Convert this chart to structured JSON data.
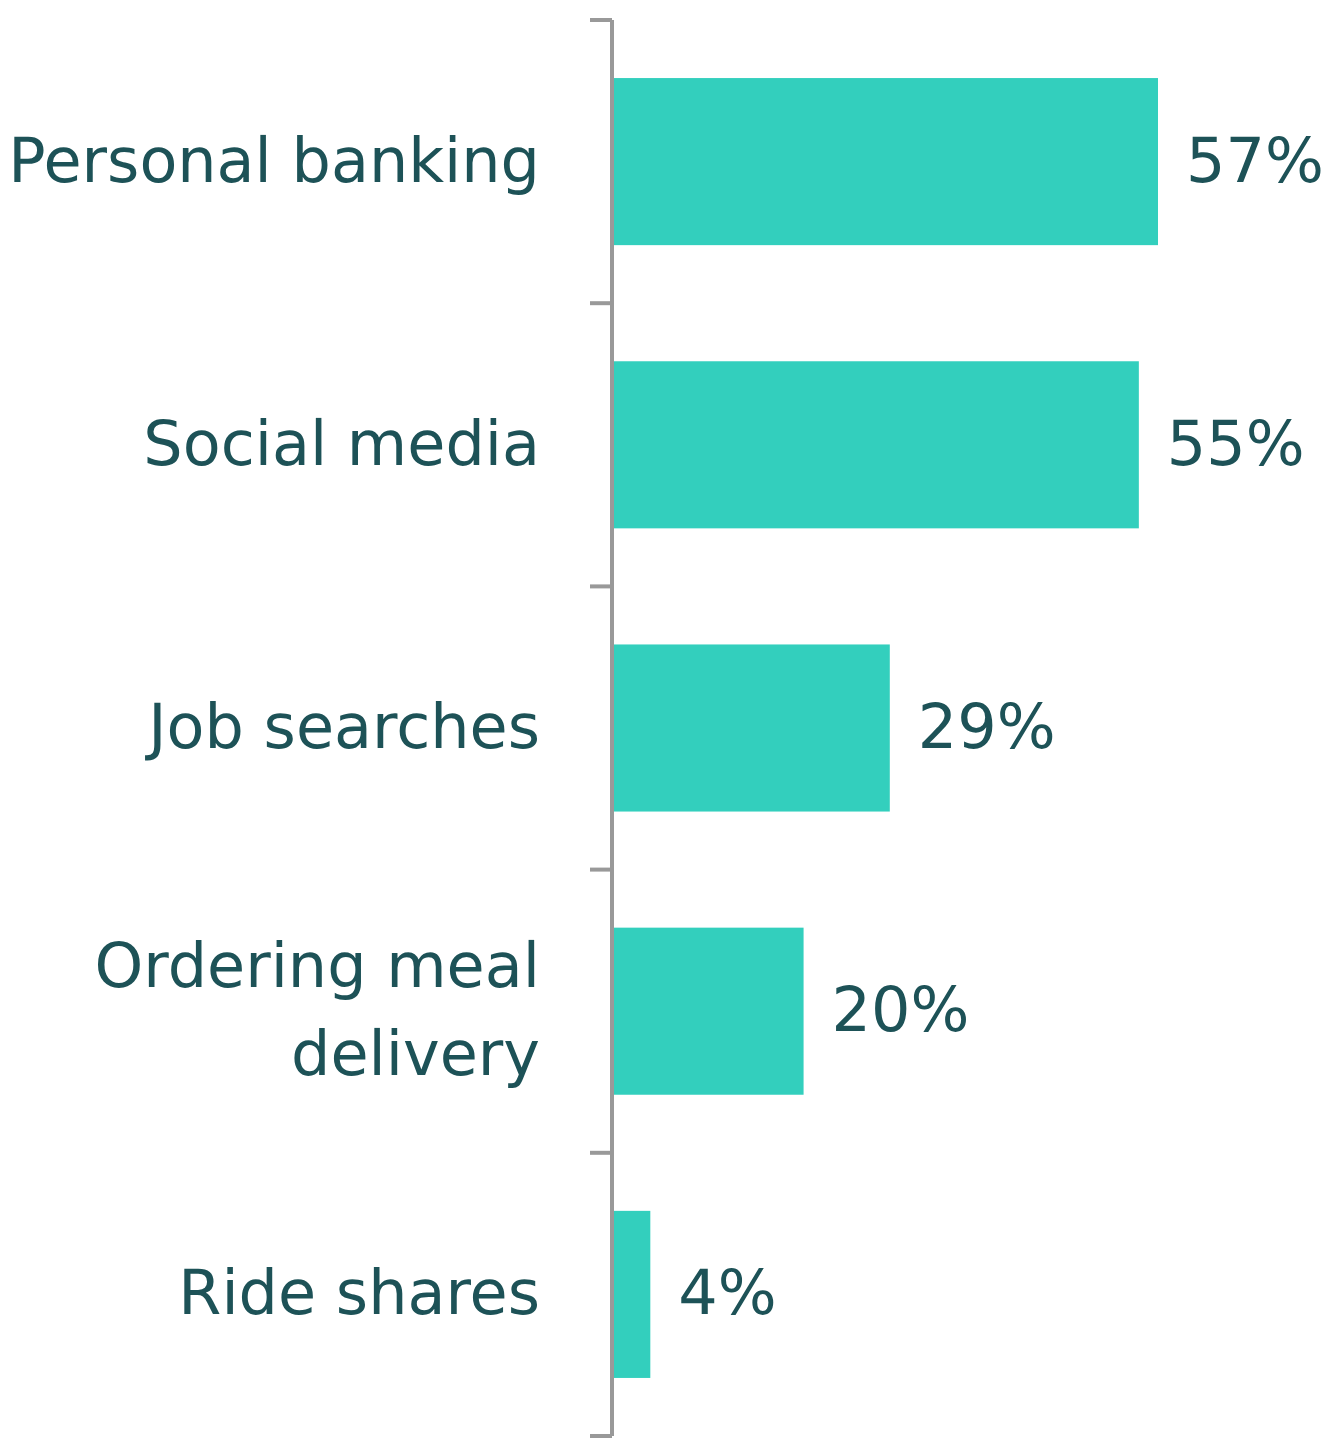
{
  "chart_data": {
    "type": "bar",
    "orientation": "horizontal",
    "categories": [
      "Personal banking",
      "Social media",
      "Job searches",
      "Ordering meal delivery",
      "Ride shares"
    ],
    "values": [
      57,
      55,
      29,
      20,
      4
    ],
    "value_labels": [
      "57%",
      "55%",
      "29%",
      "20%",
      "4%"
    ],
    "color": "#33cfbd"
  }
}
